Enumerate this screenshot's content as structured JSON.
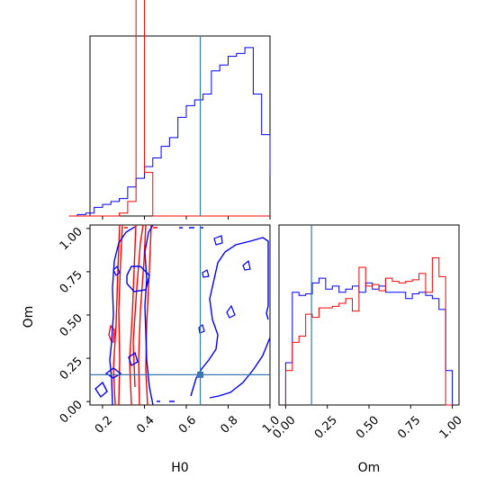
{
  "chart_data": {
    "type": "corner",
    "parameters": [
      "H0",
      "Om"
    ],
    "truth": {
      "H0": 0.667,
      "Om": 0.155
    },
    "colors": {
      "series_a": "#0000ff",
      "series_b": "#ff0000",
      "truth": "#3a77b2"
    },
    "grid": false,
    "legend": "none",
    "panels": {
      "h0_hist": {
        "type": "histogram",
        "xlim": [
          0.14,
          1.0
        ],
        "xticks": [
          "0.2",
          "0.4",
          "0.6",
          "0.8",
          "1.0"
        ],
        "bin_edges": [
          0.04,
          0.08,
          0.12,
          0.16,
          0.2,
          0.24,
          0.28,
          0.32,
          0.36,
          0.4,
          0.44,
          0.48,
          0.52,
          0.56,
          0.6,
          0.64,
          0.68,
          0.72,
          0.76,
          0.8,
          0.84,
          0.88,
          0.92,
          0.96,
          1.0
        ],
        "series": [
          {
            "color_key": "series_a",
            "values": [
              0,
              0.005,
              0.01,
              0.03,
              0.04,
              0.05,
              0.06,
              0.1,
              0.13,
              0.17,
              0.2,
              0.24,
              0.27,
              0.34,
              0.38,
              0.4,
              0.42,
              0.5,
              0.52,
              0.55,
              0.56,
              0.58,
              0.42,
              0.28,
              0.14
            ]
          },
          {
            "color_key": "series_b",
            "values": [
              0,
              0,
              0,
              0,
              0,
              0,
              0.01,
              0.05,
              0.8,
              0.15,
              0,
              0,
              0,
              0,
              0,
              0,
              0,
              0,
              0,
              0,
              0,
              0,
              0,
              0,
              0
            ]
          }
        ]
      },
      "om_hist": {
        "type": "histogram",
        "xlim": [
          -0.04,
          1.04
        ],
        "xticks": [
          "0.00",
          "0.25",
          "0.50",
          "0.75",
          "1.00"
        ],
        "xlabel": "Om",
        "series": [
          {
            "color_key": "series_a",
            "values": [
              0.27,
              0.72,
              0.7,
              0.71,
              0.78,
              0.81,
              0.74,
              0.76,
              0.72,
              0.74,
              0.76,
              0.72,
              0.78,
              0.74,
              0.76,
              0.72,
              0.72,
              0.72,
              0.68,
              0.71,
              0.72,
              0.7,
              0.68,
              0.61,
              0.22
            ]
          },
          {
            "color_key": "series_b",
            "values": [
              0.22,
              0.4,
              0.44,
              0.58,
              0.56,
              0.62,
              0.62,
              0.63,
              0.65,
              0.68,
              0.6,
              0.88,
              0.76,
              0.77,
              0.73,
              0.81,
              0.79,
              0.78,
              0.79,
              0.8,
              0.84,
              0.72,
              0.94,
              0.82,
              0.0
            ]
          }
        ]
      },
      "joint": {
        "type": "contour",
        "xlim": [
          0.14,
          1.0
        ],
        "ylim": [
          -0.02,
          1.02
        ],
        "xticks": [
          "0.2",
          "0.4",
          "0.6",
          "0.8",
          "1.0"
        ],
        "yticks": [
          "0.00",
          "0.25",
          "0.50",
          "0.75",
          "1.00"
        ],
        "xlabel": "H0",
        "ylabel": "Om"
      }
    }
  }
}
